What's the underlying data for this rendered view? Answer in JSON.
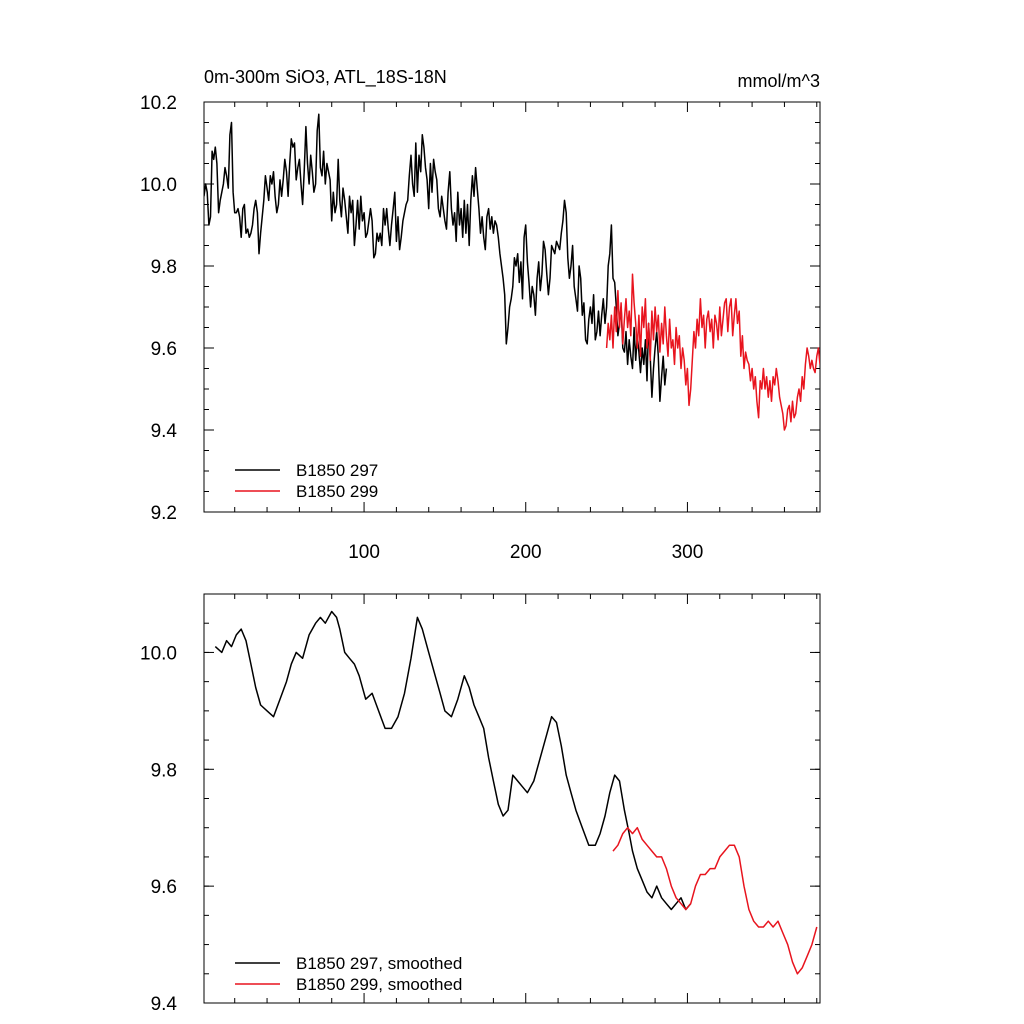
{
  "chart_data": [
    {
      "type": "line",
      "title": "0m-300m SiO3, ATL_18S-18N",
      "units": "mmol/m^3",
      "xlabel": "",
      "ylabel": "",
      "xlim": [
        1,
        382
      ],
      "ylim": [
        9.2,
        10.2
      ],
      "x_ticks": [
        100,
        200,
        300
      ],
      "x_tick_labels": [
        "100",
        "200",
        "300"
      ],
      "y_ticks": [
        9.2,
        9.4,
        9.6,
        9.8,
        10.0,
        10.2
      ],
      "y_tick_labels": [
        "9.2",
        "9.4",
        "9.6",
        "9.8",
        "10.0",
        "10.2"
      ],
      "legend_position": "bottom-left",
      "series": [
        {
          "name": "B1850 297",
          "color": "#000000",
          "start_x": 1,
          "values": [
            9.97,
            10.0,
            9.98,
            9.9,
            9.92,
            10.08,
            10.06,
            10.09,
            10.05,
            9.93,
            9.96,
            9.98,
            10.0,
            10.04,
            10.02,
            9.99,
            10.12,
            10.15,
            9.98,
            9.93,
            9.93,
            9.94,
            9.92,
            9.87,
            9.94,
            9.95,
            9.88,
            9.89,
            9.87,
            9.88,
            9.9,
            9.94,
            9.96,
            9.93,
            9.83,
            9.88,
            9.92,
            9.96,
            10.02,
            9.99,
            9.96,
            10.02,
            10.0,
            10.03,
            9.97,
            9.93,
            9.95,
            10.01,
            9.97,
            10.01,
            10.06,
            10.03,
            9.97,
            10.05,
            10.11,
            10.09,
            10.1,
            10.01,
            10.04,
            10.06,
            10.0,
            9.95,
            10.03,
            10.14,
            10.05,
            10.0,
            10.07,
            10.03,
            9.98,
            10.0,
            10.13,
            10.17,
            10.04,
            10.02,
            10.08,
            10.0,
            10.05,
            10.03,
            10.01,
            9.91,
            9.98,
            9.93,
            9.95,
            10.06,
            9.96,
            9.92,
            9.99,
            9.96,
            9.92,
            9.88,
            9.97,
            9.93,
            9.96,
            9.85,
            9.9,
            9.96,
            9.89,
            9.97,
            9.91,
            9.93,
            9.87,
            9.88,
            9.91,
            9.94,
            9.91,
            9.82,
            9.83,
            9.88,
            9.86,
            9.88,
            9.85,
            9.94,
            9.9,
            9.94,
            9.89,
            9.85,
            9.9,
            9.94,
            9.98,
            9.86,
            9.92,
            9.84,
            9.87,
            9.91,
            9.93,
            9.95,
            9.96,
            10.02,
            10.07,
            10.0,
            9.97,
            10.1,
            9.98,
            10.07,
            10.03,
            10.12,
            10.09,
            10.04,
            10.01,
            9.94,
            10.05,
            9.98,
            10.06,
            10.03,
            10.01,
            9.94,
            9.92,
            9.97,
            9.94,
            9.91,
            9.89,
            9.98,
            10.03,
            9.94,
            9.9,
            9.93,
            9.86,
            9.98,
            9.9,
            9.94,
            9.87,
            9.96,
            9.88,
            9.95,
            9.85,
            9.96,
            10.02,
            9.97,
            10.04,
            9.99,
            9.94,
            9.88,
            9.92,
            9.87,
            9.84,
            9.92,
            9.94,
            9.89,
            9.92,
            9.88,
            9.91,
            9.9,
            9.87,
            9.83,
            9.8,
            9.77,
            9.73,
            9.61,
            9.65,
            9.7,
            9.72,
            9.75,
            9.82,
            9.8,
            9.83,
            9.76,
            9.81,
            9.72,
            9.87,
            9.9,
            9.81,
            9.76,
            9.7,
            9.75,
            9.73,
            9.68,
            9.77,
            9.81,
            9.74,
            9.78,
            9.86,
            9.84,
            9.78,
            9.73,
            9.77,
            9.85,
            9.84,
            9.83,
            9.86,
            9.85,
            9.84,
            9.88,
            9.91,
            9.96,
            9.93,
            9.82,
            9.77,
            9.8,
            9.85,
            9.75,
            9.72,
            9.69,
            9.8,
            9.77,
            9.68,
            9.71,
            9.62,
            9.61,
            9.67,
            9.7,
            9.66,
            9.73,
            9.62,
            9.64,
            9.69,
            9.63,
            9.68,
            9.72,
            9.66,
            9.7,
            9.8,
            9.83,
            9.9,
            9.77,
            9.76,
            9.7,
            9.63,
            9.66,
            9.7,
            9.6,
            9.59,
            9.64,
            9.56,
            9.62,
            9.58,
            9.55,
            9.65,
            9.57,
            9.63,
            9.59,
            9.54,
            9.6,
            9.56,
            9.62,
            9.52,
            9.66,
            9.58,
            9.48,
            9.55,
            9.6,
            9.64,
            9.58,
            9.47,
            9.53,
            9.58,
            9.51,
            9.55
          ]
        },
        {
          "name": "B1850 299",
          "color": "#e8141e",
          "start_x": 250,
          "values": [
            9.6,
            9.66,
            9.62,
            9.68,
            9.6,
            9.7,
            9.64,
            9.74,
            9.65,
            9.71,
            9.61,
            9.67,
            9.72,
            9.65,
            9.69,
            9.63,
            9.78,
            9.71,
            9.66,
            9.6,
            9.68,
            9.58,
            9.7,
            9.65,
            9.72,
            9.6,
            9.66,
            9.57,
            9.69,
            9.62,
            9.7,
            9.64,
            9.68,
            9.59,
            9.66,
            9.61,
            9.7,
            9.63,
            9.58,
            9.67,
            9.6,
            9.62,
            9.56,
            9.65,
            9.6,
            9.63,
            9.55,
            9.6,
            9.57,
            9.51,
            9.55,
            9.46,
            9.5,
            9.57,
            9.64,
            9.6,
            9.67,
            9.63,
            9.72,
            9.65,
            9.68,
            9.6,
            9.67,
            9.69,
            9.64,
            9.67,
            9.6,
            9.68,
            9.66,
            9.62,
            9.7,
            9.63,
            9.67,
            9.71,
            9.72,
            9.64,
            9.7,
            9.72,
            9.63,
            9.68,
            9.72,
            9.66,
            9.69,
            9.58,
            9.63,
            9.55,
            9.59,
            9.57,
            9.56,
            9.52,
            9.55,
            9.5,
            9.53,
            9.47,
            9.43,
            9.52,
            9.5,
            9.55,
            9.5,
            9.53,
            9.48,
            9.52,
            9.47,
            9.53,
            9.51,
            9.55,
            9.52,
            9.48,
            9.46,
            9.44,
            9.4,
            9.41,
            9.45,
            9.46,
            9.42,
            9.47,
            9.43,
            9.44,
            9.48,
            9.5,
            9.47,
            9.53,
            9.5,
            9.56,
            9.6,
            9.58,
            9.55,
            9.57,
            9.55,
            9.54,
            9.58,
            9.6,
            9.56
          ]
        }
      ]
    },
    {
      "type": "line",
      "title": "",
      "xlabel": "",
      "ylabel": "",
      "xlim": [
        1,
        382
      ],
      "ylim": [
        9.4,
        10.1
      ],
      "x_ticks": [
        100,
        200,
        300
      ],
      "x_tick_labels": [
        "",
        "",
        ""
      ],
      "y_ticks": [
        9.4,
        9.6,
        9.8,
        10.0
      ],
      "y_tick_labels": [
        "9.4",
        "9.6",
        "9.8",
        "10.0"
      ],
      "legend_position": "bottom-left",
      "series": [
        {
          "name": "B1850 297, smoothed",
          "color": "#000000",
          "x": [
            8,
            12,
            15,
            18,
            21,
            24,
            27,
            30,
            33,
            36,
            40,
            44,
            48,
            52,
            55,
            58,
            62,
            66,
            70,
            73,
            76,
            80,
            83,
            85,
            88,
            91,
            94,
            97,
            101,
            105,
            109,
            113,
            117,
            121,
            125,
            129,
            133,
            136,
            140,
            144,
            147,
            150,
            154,
            158,
            162,
            165,
            168,
            171,
            174,
            177,
            180,
            183,
            186,
            189,
            192,
            195,
            198,
            201,
            205,
            209,
            213,
            216,
            219,
            222,
            225,
            228,
            231,
            235,
            239,
            243,
            246,
            249,
            252,
            255,
            258,
            261,
            264,
            266,
            269,
            272,
            275,
            278,
            281,
            284,
            287,
            290,
            293,
            296,
            299,
            302
          ],
          "values": [
            10.01,
            10.0,
            10.02,
            10.01,
            10.03,
            10.04,
            10.02,
            9.98,
            9.94,
            9.91,
            9.9,
            9.89,
            9.92,
            9.95,
            9.98,
            10.0,
            9.99,
            10.03,
            10.05,
            10.06,
            10.05,
            10.07,
            10.06,
            10.04,
            10.0,
            9.99,
            9.98,
            9.96,
            9.92,
            9.93,
            9.9,
            9.87,
            9.87,
            9.89,
            9.93,
            9.99,
            10.06,
            10.04,
            10.0,
            9.96,
            9.93,
            9.9,
            9.89,
            9.92,
            9.96,
            9.94,
            9.91,
            9.89,
            9.87,
            9.82,
            9.78,
            9.74,
            9.72,
            9.73,
            9.79,
            9.78,
            9.77,
            9.76,
            9.78,
            9.82,
            9.86,
            9.89,
            9.88,
            9.84,
            9.79,
            9.76,
            9.73,
            9.7,
            9.67,
            9.67,
            9.69,
            9.72,
            9.76,
            9.79,
            9.78,
            9.73,
            9.69,
            9.66,
            9.63,
            9.61,
            9.59,
            9.58,
            9.6,
            9.58,
            9.57,
            9.56,
            9.57,
            9.58,
            9.56,
            9.57
          ]
        },
        {
          "name": "B1850 299, smoothed",
          "color": "#e8141e",
          "x": [
            254,
            257,
            260,
            263,
            266,
            269,
            272,
            275,
            278,
            281,
            284,
            287,
            290,
            293,
            296,
            299,
            302,
            305,
            308,
            311,
            314,
            317,
            320,
            323,
            326,
            329,
            332,
            335,
            338,
            341,
            344,
            347,
            350,
            353,
            356,
            359,
            362,
            365,
            368,
            371,
            374,
            377,
            380
          ],
          "values": [
            9.66,
            9.67,
            9.69,
            9.7,
            9.69,
            9.7,
            9.68,
            9.67,
            9.66,
            9.65,
            9.65,
            9.63,
            9.6,
            9.58,
            9.57,
            9.56,
            9.57,
            9.6,
            9.62,
            9.62,
            9.63,
            9.63,
            9.65,
            9.66,
            9.67,
            9.67,
            9.65,
            9.6,
            9.56,
            9.54,
            9.53,
            9.53,
            9.54,
            9.53,
            9.54,
            9.52,
            9.5,
            9.47,
            9.45,
            9.46,
            9.48,
            9.5,
            9.53
          ]
        }
      ]
    }
  ]
}
